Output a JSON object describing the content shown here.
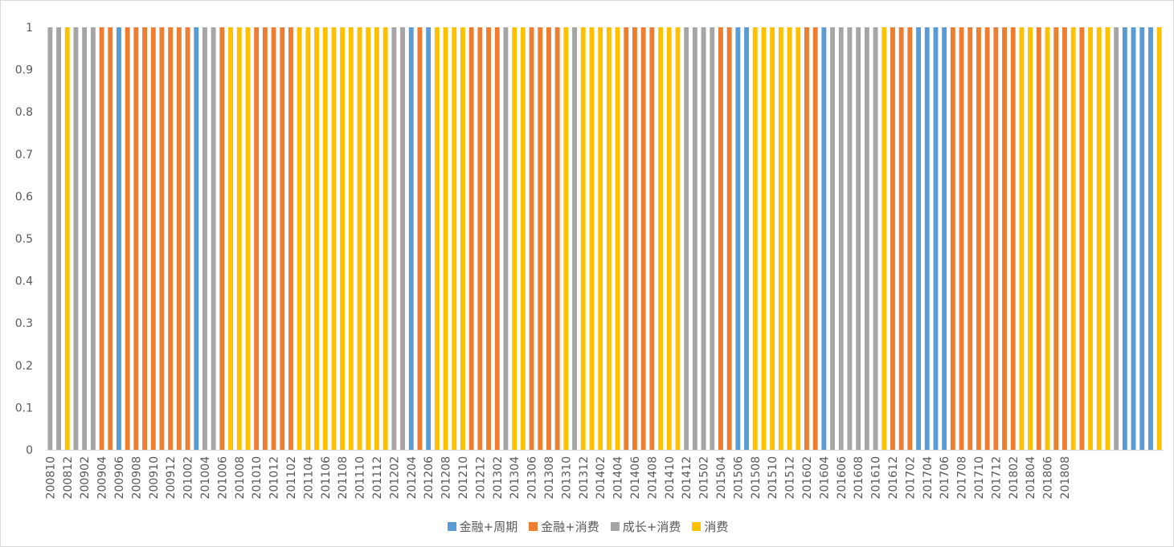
{
  "chart_data": {
    "type": "bar",
    "ylim": [
      0,
      1
    ],
    "yticks": [
      "0",
      "0.1",
      "0.2",
      "0.3",
      "0.4",
      "0.5",
      "0.6",
      "0.7",
      "0.8",
      "0.9",
      "1"
    ],
    "xtick_labels": [
      "200810",
      "200812",
      "200902",
      "200904",
      "200906",
      "200908",
      "200910",
      "200912",
      "201002",
      "201004",
      "201006",
      "201008",
      "201010",
      "201012",
      "201102",
      "201104",
      "201106",
      "201108",
      "201110",
      "201112",
      "201202",
      "201204",
      "201206",
      "201208",
      "201210",
      "201212",
      "201302",
      "201304",
      "201306",
      "201308",
      "201310",
      "201312",
      "201402",
      "201404",
      "201406",
      "201408",
      "201410",
      "201412",
      "201502",
      "201504",
      "201506",
      "201508",
      "201510",
      "201512",
      "201602",
      "201604",
      "201606",
      "201608",
      "201610",
      "201612",
      "201702",
      "201704",
      "201706",
      "201708",
      "201710",
      "201712",
      "201802",
      "201804",
      "201806",
      "201808"
    ],
    "series": [
      {
        "name": "金融+周期",
        "color": "#5B9BD5"
      },
      {
        "name": "金融+消费",
        "color": "#ED7D31"
      },
      {
        "name": "成长+消费",
        "color": "#A5A5A5"
      },
      {
        "name": "消费",
        "color": "#FFC000"
      }
    ],
    "monthly_regime_series_index": [
      2,
      2,
      3,
      2,
      2,
      2,
      1,
      1,
      0,
      1,
      1,
      1,
      1,
      1,
      1,
      1,
      1,
      0,
      2,
      2,
      1,
      3,
      3,
      3,
      1,
      1,
      1,
      1,
      1,
      3,
      3,
      3,
      3,
      3,
      3,
      3,
      3,
      3,
      3,
      3,
      2,
      2,
      0,
      1,
      0,
      3,
      3,
      3,
      3,
      1,
      1,
      1,
      1,
      2,
      3,
      3,
      1,
      1,
      1,
      1,
      3,
      2,
      3,
      3,
      3,
      3,
      3,
      1,
      1,
      1,
      1,
      3,
      3,
      3,
      2,
      2,
      2,
      2,
      1,
      1,
      0,
      0,
      3,
      3,
      3,
      3,
      3,
      3,
      1,
      1,
      0,
      2,
      2,
      2,
      2,
      2,
      2,
      3,
      1,
      1,
      1,
      0,
      0,
      0,
      0,
      1,
      1,
      1,
      1,
      1,
      1,
      1,
      1,
      3,
      3,
      1,
      3,
      1,
      1,
      3,
      1,
      3,
      3,
      3,
      2,
      0,
      0,
      0,
      0,
      3
    ],
    "legend": "bottom"
  }
}
